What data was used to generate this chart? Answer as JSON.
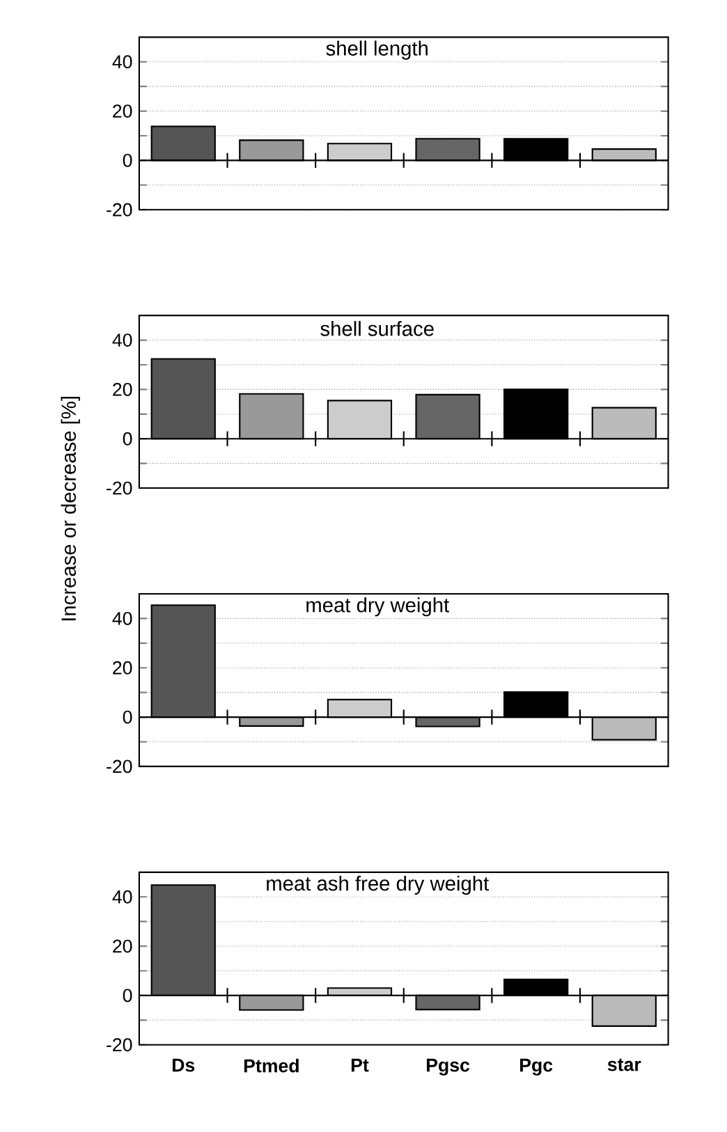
{
  "chart_data": [
    {
      "type": "bar",
      "title": "shell length",
      "categories": [
        null,
        null,
        null,
        null,
        null,
        null
      ],
      "values": [
        13.8,
        8.2,
        6.8,
        8.8,
        8.8,
        4.6
      ],
      "colors": [
        "#555555",
        "#999999",
        "#cccccc",
        "#666666",
        "#000000",
        "#bbbbbb"
      ],
      "ylim": [
        -20,
        50
      ],
      "yticks": [
        -20,
        {
          "value": -10,
          "label": null
        },
        0,
        {
          "value": 10,
          "label": null
        },
        20,
        {
          "value": 30,
          "label": null
        },
        40
      ],
      "grid": "y",
      "tick_labels": "y"
    },
    {
      "type": "bar",
      "title": "shell surface",
      "ylabel": "Increase or decrease [%]",
      "categories": [
        null,
        null,
        null,
        null,
        null,
        null
      ],
      "values": [
        32.4,
        18.2,
        15.5,
        17.9,
        20,
        12.6
      ],
      "colors": [
        "#555555",
        "#999999",
        "#cccccc",
        "#666666",
        "#000000",
        "#bbbbbb"
      ],
      "ylim": [
        -20,
        50
      ],
      "yticks": [
        -20,
        {
          "value": -10,
          "label": null
        },
        0,
        {
          "value": 10,
          "label": null
        },
        20,
        {
          "value": 30,
          "label": null
        },
        40
      ],
      "grid": "y",
      "tick_labels": "y"
    },
    {
      "type": "bar",
      "title": "meat dry weight",
      "categories": [
        null,
        null,
        null,
        null,
        null,
        null
      ],
      "values": [
        45.4,
        -3.6,
        7.1,
        -3.8,
        10.2,
        -9.2
      ],
      "colors": [
        "#555555",
        "#999999",
        "#cccccc",
        "#666666",
        "#000000",
        "#bbbbbb"
      ],
      "ylim": [
        -20,
        50
      ],
      "yticks": [
        -20,
        {
          "value": -10,
          "label": null
        },
        0,
        {
          "value": 10,
          "label": null
        },
        20,
        {
          "value": 30,
          "label": null
        },
        40
      ],
      "grid": "y",
      "tick_labels": "y"
    },
    {
      "type": "bar",
      "title": "meat ash free dry weight",
      "categories": [
        "Ds",
        "Ptmed",
        "Pt",
        "Pgsc",
        "Pgc",
        "star"
      ],
      "values": [
        44.8,
        -5.9,
        3.0,
        -5.7,
        6.5,
        -12.4
      ],
      "colors": [
        "#555555",
        "#999999",
        "#cccccc",
        "#666666",
        "#000000",
        "#bbbbbb"
      ],
      "ylim": [
        -20,
        50
      ],
      "yticks": [
        -20,
        {
          "value": -10,
          "label": null
        },
        0,
        {
          "value": 10,
          "label": null
        },
        20,
        {
          "value": 30,
          "label": null
        },
        40
      ],
      "grid": "y"
    }
  ]
}
